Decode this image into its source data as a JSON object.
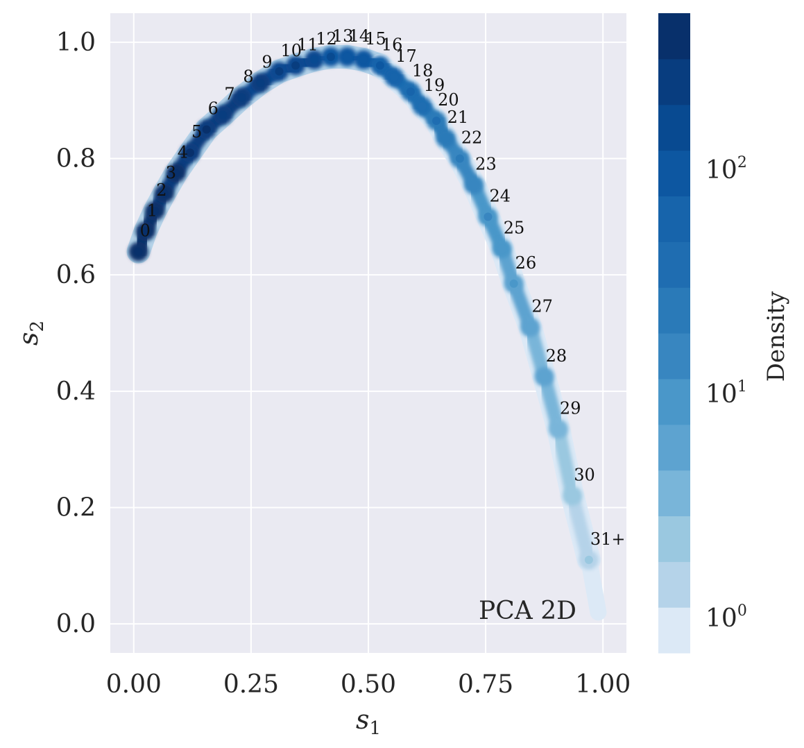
{
  "chart_data": {
    "type": "density",
    "xlabel_base": "s",
    "xlabel_sub": "1",
    "ylabel_base": "s",
    "ylabel_sub": "2",
    "xlim": [
      -0.05,
      1.05
    ],
    "ylim": [
      -0.05,
      1.05
    ],
    "xticks": [
      0.0,
      0.25,
      0.5,
      0.75,
      1.0
    ],
    "xtick_labels": [
      "0.00",
      "0.25",
      "0.50",
      "0.75",
      "1.00"
    ],
    "yticks": [
      0.0,
      0.2,
      0.4,
      0.6,
      0.8,
      1.0
    ],
    "ytick_labels": [
      "0.0",
      "0.2",
      "0.4",
      "0.6",
      "0.8",
      "1.0"
    ],
    "grid": true,
    "annotation": "PCA 2D",
    "colorbar": {
      "label": "Density",
      "scale": "log",
      "ticks": [
        {
          "base": "10",
          "exp": "0",
          "value": 1
        },
        {
          "base": "10",
          "exp": "1",
          "value": 10
        },
        {
          "base": "10",
          "exp": "2",
          "value": 100
        }
      ],
      "range": [
        0.7,
        500
      ],
      "colors": [
        "#dce9f6",
        "#b5d3e9",
        "#9ac8e0",
        "#79b5d9",
        "#5da3d0",
        "#4a97c9",
        "#3886c0",
        "#2a7ab8",
        "#1f6db1",
        "#1764ab",
        "#0d57a1",
        "#084a91",
        "#083d7f",
        "#08306b"
      ]
    },
    "points": [
      {
        "label": "0",
        "x": 0.01,
        "y": 0.64,
        "density": 350
      },
      {
        "label": "1",
        "x": 0.025,
        "y": 0.675,
        "density": 340
      },
      {
        "label": "2",
        "x": 0.045,
        "y": 0.71,
        "density": 320
      },
      {
        "label": "3",
        "x": 0.065,
        "y": 0.74,
        "density": 300
      },
      {
        "label": "4",
        "x": 0.09,
        "y": 0.775,
        "density": 280
      },
      {
        "label": "5",
        "x": 0.12,
        "y": 0.81,
        "density": 260
      },
      {
        "label": "6",
        "x": 0.155,
        "y": 0.85,
        "density": 240
      },
      {
        "label": "7",
        "x": 0.19,
        "y": 0.875,
        "density": 220
      },
      {
        "label": "8",
        "x": 0.23,
        "y": 0.905,
        "density": 200
      },
      {
        "label": "9",
        "x": 0.27,
        "y": 0.93,
        "density": 180
      },
      {
        "label": "10",
        "x": 0.31,
        "y": 0.95,
        "density": 160
      },
      {
        "label": "11",
        "x": 0.345,
        "y": 0.96,
        "density": 140
      },
      {
        "label": "12",
        "x": 0.385,
        "y": 0.97,
        "density": 120
      },
      {
        "label": "13",
        "x": 0.42,
        "y": 0.975,
        "density": 100
      },
      {
        "label": "14",
        "x": 0.455,
        "y": 0.975,
        "density": 85
      },
      {
        "label": "15",
        "x": 0.49,
        "y": 0.97,
        "density": 70
      },
      {
        "label": "16",
        "x": 0.525,
        "y": 0.96,
        "density": 55
      },
      {
        "label": "17",
        "x": 0.555,
        "y": 0.94,
        "density": 45
      },
      {
        "label": "18",
        "x": 0.59,
        "y": 0.915,
        "density": 36
      },
      {
        "label": "19",
        "x": 0.615,
        "y": 0.89,
        "density": 30
      },
      {
        "label": "20",
        "x": 0.645,
        "y": 0.865,
        "density": 24
      },
      {
        "label": "21",
        "x": 0.665,
        "y": 0.835,
        "density": 19
      },
      {
        "label": "22",
        "x": 0.695,
        "y": 0.8,
        "density": 15
      },
      {
        "label": "23",
        "x": 0.725,
        "y": 0.755,
        "density": 12
      },
      {
        "label": "24",
        "x": 0.755,
        "y": 0.7,
        "density": 10
      },
      {
        "label": "25",
        "x": 0.785,
        "y": 0.645,
        "density": 8
      },
      {
        "label": "26",
        "x": 0.81,
        "y": 0.585,
        "density": 6
      },
      {
        "label": "27",
        "x": 0.845,
        "y": 0.51,
        "density": 5
      },
      {
        "label": "28",
        "x": 0.875,
        "y": 0.425,
        "density": 4
      },
      {
        "label": "29",
        "x": 0.905,
        "y": 0.335,
        "density": 3
      },
      {
        "label": "30",
        "x": 0.935,
        "y": 0.22,
        "density": 2
      },
      {
        "label": "31+",
        "x": 0.97,
        "y": 0.11,
        "density": 1.5
      }
    ]
  }
}
